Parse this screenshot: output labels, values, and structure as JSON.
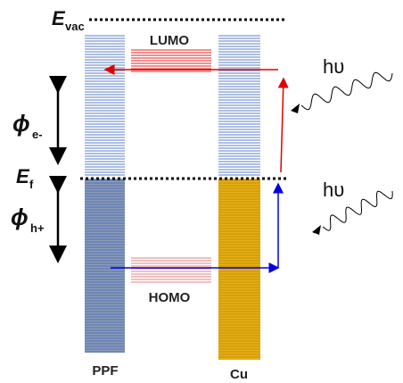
{
  "vacuum_level": {
    "symbol": "E",
    "subscript": "vac"
  },
  "fermi_level": {
    "symbol": "E",
    "subscript": "f"
  },
  "work_function_electron": {
    "symbol": "ϕ",
    "subscript": "e-"
  },
  "work_function_hole": {
    "symbol": "ϕ",
    "subscript": "h+"
  },
  "lumo": "LUMO",
  "homo": "HOMO",
  "photon_top": "hυ",
  "photon_bottom": "hυ",
  "left_column": "PPF",
  "right_column": "Cu"
}
